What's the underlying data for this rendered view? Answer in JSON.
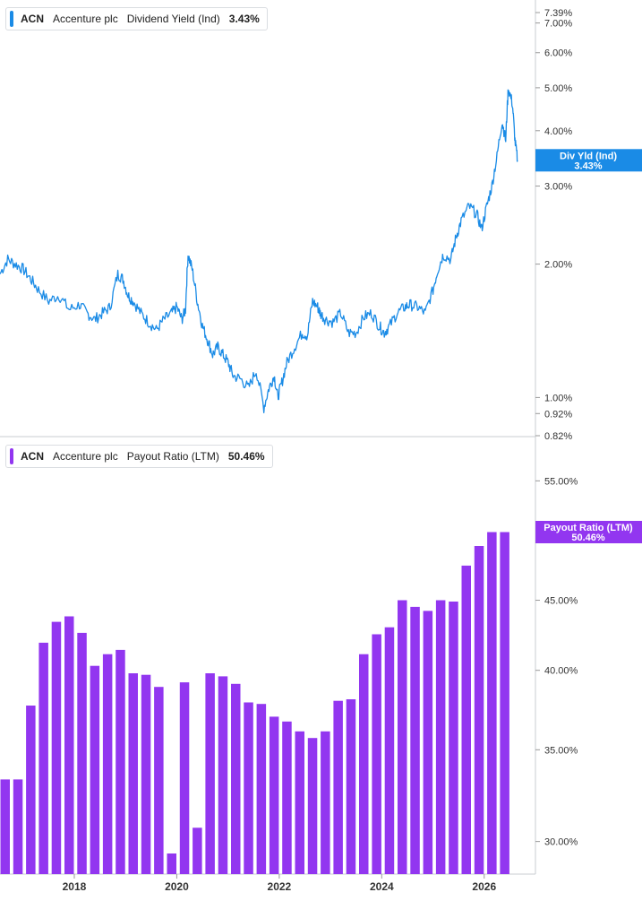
{
  "legends": [
    {
      "symbol": "ACN",
      "company": "Accenture plc",
      "metric": "Dividend Yield (Ind)",
      "value": "3.43%",
      "color": "#1a8be6"
    },
    {
      "symbol": "ACN",
      "company": "Accenture plc",
      "metric": "Payout Ratio (LTM)",
      "value": "50.46%",
      "color": "#9236f0"
    }
  ],
  "chart_data": [
    {
      "type": "line",
      "name": "Dividend Yield (Ind)",
      "color": "#1a8be6",
      "yscale": "log",
      "ylim": [
        0.82,
        7.6
      ],
      "yticks": [
        "7.39%",
        "7.00%",
        "6.00%",
        "5.00%",
        "4.00%",
        "3.00%",
        "2.00%",
        "1.00%",
        "0.92%",
        "0.82%"
      ],
      "ytick_values": [
        7.39,
        7.0,
        6.0,
        5.0,
        4.0,
        3.0,
        2.0,
        1.0,
        0.92,
        0.82
      ],
      "xlim": [
        2016.55,
        2027.0
      ],
      "x": [
        2016.55,
        2016.7,
        2016.85,
        2017.0,
        2017.15,
        2017.3,
        2017.5,
        2017.7,
        2017.9,
        2018.1,
        2018.25,
        2018.4,
        2018.55,
        2018.7,
        2018.85,
        2018.95,
        2019.05,
        2019.15,
        2019.3,
        2019.45,
        2019.6,
        2019.75,
        2019.9,
        2020.0,
        2020.1,
        2020.17,
        2020.22,
        2020.3,
        2020.4,
        2020.5,
        2020.6,
        2020.7,
        2020.8,
        2020.9,
        2021.0,
        2021.1,
        2021.25,
        2021.4,
        2021.55,
        2021.7,
        2021.8,
        2021.9,
        2021.97,
        2022.05,
        2022.15,
        2022.3,
        2022.45,
        2022.55,
        2022.65,
        2022.75,
        2022.8,
        2022.9,
        2023.05,
        2023.2,
        2023.35,
        2023.5,
        2023.65,
        2023.8,
        2023.95,
        2024.05,
        2024.15,
        2024.3,
        2024.45,
        2024.55,
        2024.7,
        2024.85,
        2025.0,
        2025.1,
        2025.2,
        2025.35,
        2025.45,
        2025.55,
        2025.7,
        2025.85,
        2025.95,
        2026.05,
        2026.15,
        2026.25,
        2026.35,
        2026.42,
        2026.47,
        2026.55,
        2026.6,
        2026.65
      ],
      "y": [
        1.9,
        2.05,
        2.0,
        1.95,
        1.85,
        1.75,
        1.65,
        1.7,
        1.58,
        1.62,
        1.55,
        1.5,
        1.55,
        1.6,
        1.9,
        1.85,
        1.7,
        1.65,
        1.55,
        1.48,
        1.42,
        1.5,
        1.55,
        1.6,
        1.5,
        1.58,
        2.1,
        1.95,
        1.65,
        1.45,
        1.35,
        1.25,
        1.3,
        1.25,
        1.2,
        1.12,
        1.1,
        1.05,
        1.15,
        0.95,
        1.05,
        1.12,
        1.0,
        1.08,
        1.2,
        1.3,
        1.4,
        1.38,
        1.65,
        1.6,
        1.55,
        1.5,
        1.48,
        1.55,
        1.4,
        1.4,
        1.52,
        1.55,
        1.45,
        1.4,
        1.45,
        1.55,
        1.6,
        1.62,
        1.6,
        1.55,
        1.75,
        1.95,
        2.1,
        2.05,
        2.3,
        2.5,
        2.7,
        2.6,
        2.4,
        2.7,
        3.0,
        3.5,
        4.2,
        3.8,
        5.0,
        4.6,
        3.8,
        3.43
      ]
    },
    {
      "type": "bar",
      "name": "Payout Ratio (LTM)",
      "color": "#9236f0",
      "yscale": "log",
      "ylim": [
        28.4,
        57.4
      ],
      "yticks": [
        "55.00%",
        "45.00%",
        "40.00%",
        "35.00%",
        "30.00%"
      ],
      "ytick_values": [
        55.0,
        45.0,
        40.0,
        35.0,
        30.0
      ],
      "xlim": [
        2016.55,
        2027.0
      ],
      "x": [
        2016.65,
        2016.9,
        2017.15,
        2017.4,
        2017.65,
        2017.9,
        2018.15,
        2018.4,
        2018.65,
        2018.9,
        2019.15,
        2019.4,
        2019.65,
        2019.9,
        2020.15,
        2020.4,
        2020.65,
        2020.9,
        2021.15,
        2021.4,
        2021.65,
        2021.9,
        2022.15,
        2022.4,
        2022.65,
        2022.9,
        2023.15,
        2023.4,
        2023.65,
        2023.9,
        2024.15,
        2024.4,
        2024.65,
        2024.9,
        2025.15,
        2025.4,
        2025.65,
        2025.9,
        2026.15,
        2026.4
      ],
      "values": [
        33.3,
        33.3,
        37.7,
        41.9,
        43.4,
        43.8,
        42.6,
        40.3,
        41.1,
        41.4,
        39.8,
        39.7,
        38.9,
        29.4,
        39.2,
        30.7,
        39.8,
        39.6,
        39.1,
        37.9,
        37.8,
        37.0,
        36.7,
        36.1,
        35.7,
        36.1,
        38.0,
        38.1,
        41.1,
        42.5,
        43.0,
        45.0,
        44.5,
        44.2,
        45.0,
        44.9,
        47.7,
        49.3,
        50.46,
        50.46
      ]
    }
  ],
  "x_axis": {
    "labels": [
      "2018",
      "2020",
      "2022",
      "2024",
      "2026"
    ],
    "values": [
      2018,
      2020,
      2022,
      2024,
      2026
    ]
  },
  "badges": [
    {
      "label": "Div Yld (Ind)",
      "value": "3.43%",
      "color": "#1a8be6"
    },
    {
      "label": "Payout Ratio (LTM)",
      "value": "50.46%",
      "color": "#9236f0"
    }
  ]
}
